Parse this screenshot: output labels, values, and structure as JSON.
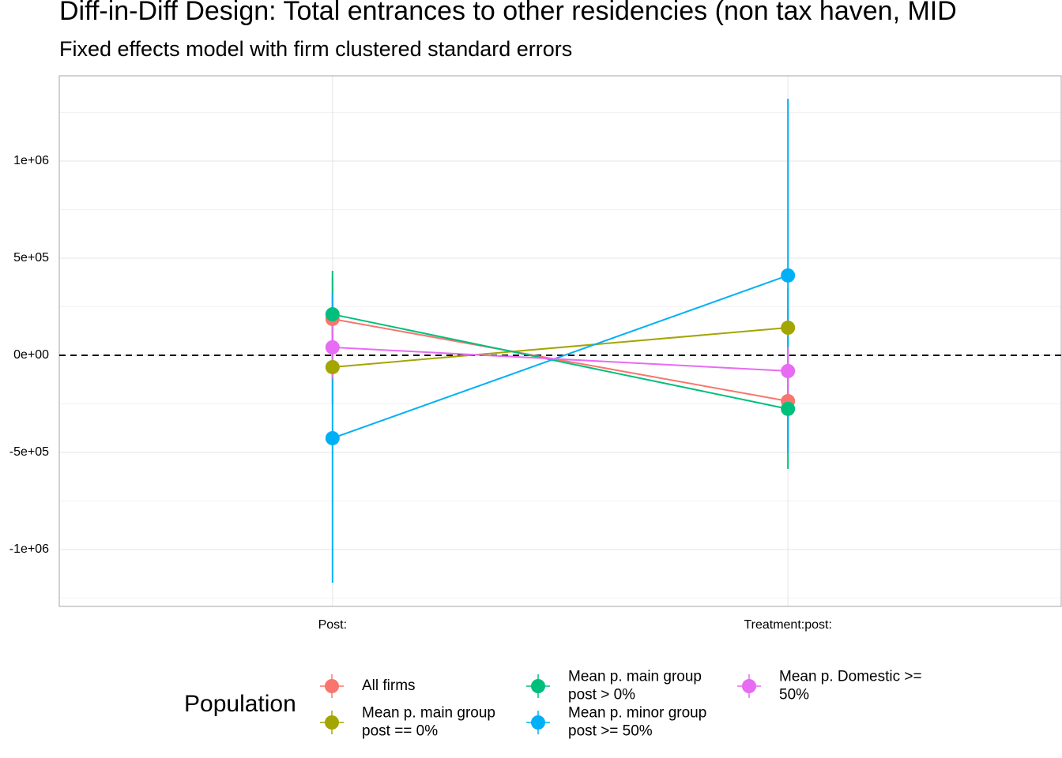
{
  "chart_data": {
    "type": "pointrange",
    "title": "Diff-in-Diff Design: Total entrances to other residencies (non tax haven, MID",
    "subtitle": "Fixed effects model with firm clustered standard errors",
    "categories": [
      "Post:",
      "Treatment:post:"
    ],
    "legend_title": "Population",
    "series": [
      {
        "name": "All firms",
        "color": "#F8766D",
        "values": [
          187000,
          -236000
        ],
        "lower": [
          -30000,
          -480000
        ],
        "upper": [
          404000,
          8000
        ]
      },
      {
        "name": "Mean p. main group post == 0%",
        "color": "#A3A500",
        "values": [
          -61000,
          142000
        ],
        "lower": [
          -250000,
          -60000
        ],
        "upper": [
          128000,
          344000
        ]
      },
      {
        "name": "Mean p. main group post > 0%",
        "color": "#00BF7D",
        "values": [
          211000,
          -276000
        ],
        "lower": [
          -13000,
          -585000
        ],
        "upper": [
          435000,
          33000
        ]
      },
      {
        "name": "Mean p. minor group post >= 50%",
        "color": "#00B0F6",
        "values": [
          -427000,
          411000
        ],
        "lower": [
          -1171000,
          -500000
        ],
        "upper": [
          317000,
          1321000
        ]
      },
      {
        "name": "Mean p. Domestic >= 50%",
        "color": "#E76BF3",
        "values": [
          41000,
          -81000
        ],
        "lower": [
          -120000,
          -203000
        ],
        "upper": [
          202000,
          41000
        ]
      }
    ],
    "ylim": [
      -1293000,
      1439000
    ],
    "yticks": [
      {
        "value": -1000000,
        "label": "-1e+06"
      },
      {
        "value": -500000,
        "label": "-5e+05"
      },
      {
        "value": 0,
        "label": "0e+00"
      },
      {
        "value": 500000,
        "label": "5e+05"
      },
      {
        "value": 1000000,
        "label": "1e+06"
      }
    ],
    "reference_line": 0,
    "grid": true,
    "legend_position": "bottom"
  }
}
